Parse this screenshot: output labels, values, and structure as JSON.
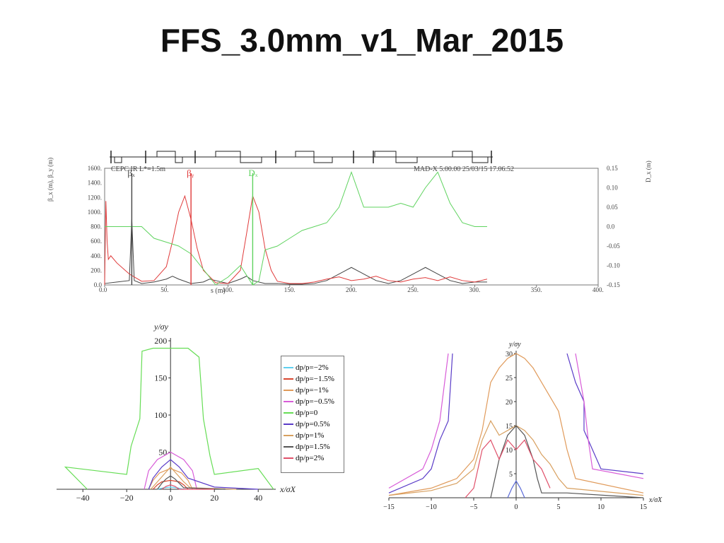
{
  "title": "FFS_3.0mm_v1_Mar_2015",
  "chart_data": [
    {
      "type": "line",
      "header_left": "CEPC IR L*=1.5m",
      "header_right": "MAD-X 5.00.00  25/03/15 17.06.52",
      "xlabel": "s (m)",
      "ylabel_left": "β_x (m), β_y (m)",
      "ylabel_right": "D_x (m)",
      "xlim": [
        0,
        400
      ],
      "ylim_left": [
        0,
        1600
      ],
      "ylim_right": [
        -0.15,
        0.15
      ],
      "x_ticks": [
        "0.0",
        "50.",
        "100.",
        "150.",
        "200.",
        "250.",
        "300.",
        "350.",
        "400."
      ],
      "y_ticks_left": [
        "0.0",
        "200.",
        "400.",
        "600.",
        "800.",
        "1000.",
        "1200.",
        "1400.",
        "1600."
      ],
      "y_ticks_right": [
        "-0.15",
        "-0.10",
        "-0.05",
        "0.0",
        "0.05",
        "0.10",
        "0.15"
      ],
      "series_labels": [
        "βₓ",
        "βᵧ",
        "Dₓ"
      ],
      "series": [
        {
          "name": "βₓ",
          "axis": "left",
          "color": "#444444",
          "width": 1,
          "x": [
            0,
            10,
            20,
            22,
            24,
            30,
            40,
            50,
            55,
            60,
            70,
            80,
            85,
            90,
            100,
            110,
            115,
            120,
            130,
            140,
            150,
            160,
            170,
            180,
            190,
            200,
            210,
            220,
            230,
            240,
            250,
            260,
            270,
            280,
            290,
            300,
            310
          ],
          "y": [
            20,
            40,
            60,
            900,
            60,
            20,
            40,
            80,
            120,
            80,
            20,
            40,
            80,
            60,
            20,
            80,
            120,
            60,
            20,
            20,
            10,
            10,
            20,
            60,
            150,
            240,
            150,
            60,
            20,
            60,
            150,
            240,
            150,
            60,
            20,
            40,
            40
          ]
        },
        {
          "name": "βᵧ",
          "axis": "left",
          "color": "#e03a3a",
          "width": 1,
          "x": [
            0,
            1,
            2,
            3,
            5,
            10,
            20,
            30,
            40,
            50,
            55,
            60,
            65,
            70,
            75,
            80,
            90,
            100,
            110,
            115,
            120,
            125,
            130,
            135,
            140,
            150,
            160,
            170,
            180,
            190,
            200,
            210,
            220,
            230,
            240,
            250,
            260,
            270,
            280,
            290,
            300,
            305,
            310
          ],
          "y": [
            0,
            1150,
            600,
            350,
            400,
            300,
            150,
            50,
            60,
            250,
            600,
            1000,
            1220,
            900,
            500,
            200,
            30,
            20,
            200,
            700,
            1220,
            1000,
            500,
            200,
            50,
            20,
            20,
            40,
            80,
            110,
            60,
            80,
            120,
            60,
            40,
            80,
            100,
            60,
            110,
            60,
            40,
            60,
            80
          ]
        },
        {
          "name": "Dₓ",
          "axis": "right",
          "color": "#5fd35f",
          "width": 1,
          "x": [
            0,
            5,
            10,
            20,
            30,
            40,
            50,
            60,
            70,
            80,
            90,
            95,
            100,
            110,
            120,
            125,
            130,
            140,
            150,
            160,
            170,
            180,
            190,
            200,
            210,
            220,
            230,
            240,
            250,
            260,
            270,
            280,
            290,
            300,
            310
          ],
          "y": [
            0.0,
            0.0,
            0.0,
            0.0,
            0.0,
            -0.03,
            -0.04,
            -0.05,
            -0.07,
            -0.11,
            -0.15,
            -0.14,
            -0.13,
            -0.1,
            -0.15,
            -0.14,
            -0.06,
            -0.05,
            -0.03,
            -0.01,
            0.0,
            0.01,
            0.05,
            0.14,
            0.05,
            0.05,
            0.05,
            0.06,
            0.05,
            0.1,
            0.14,
            0.06,
            0.01,
            0.0,
            0.0
          ]
        }
      ]
    },
    {
      "type": "line",
      "xlabel": "x/σX",
      "ylabel": "y/σy",
      "xlim": [
        -52,
        48
      ],
      "ylim": [
        0,
        200
      ],
      "x_ticks": [
        -40,
        -20,
        0,
        20,
        40
      ],
      "y_ticks": [
        50,
        100,
        150,
        200
      ],
      "legend_title_note": "",
      "series": [
        {
          "name": "dp/p=-2%",
          "color": "#5fd0f0",
          "x": [
            -6,
            -3,
            0,
            3,
            6
          ],
          "y": [
            0,
            2,
            3,
            2,
            0
          ]
        },
        {
          "name": "dp/p=-1.5%",
          "color": "#d9462f",
          "x": [
            -8,
            -6,
            -4,
            0,
            4,
            6,
            8
          ],
          "y": [
            0,
            6,
            10,
            12,
            10,
            6,
            0
          ]
        },
        {
          "name": "dp/p=-1%",
          "color": "#e09a5a",
          "x": [
            -10,
            -8,
            -5,
            0,
            5,
            8,
            10
          ],
          "y": [
            0,
            12,
            22,
            28,
            22,
            12,
            0
          ]
        },
        {
          "name": "dp/p=-0.5%",
          "color": "#d85cd8",
          "x": [
            -12,
            -10,
            -6,
            0,
            6,
            10,
            12
          ],
          "y": [
            0,
            25,
            40,
            50,
            40,
            25,
            0
          ]
        },
        {
          "name": "dp/p=0",
          "color": "#66dd55",
          "x": [
            -38,
            -48,
            -20,
            -18,
            -14,
            -13,
            -8,
            8,
            13,
            15,
            18,
            20,
            40,
            47
          ],
          "y": [
            0,
            30,
            20,
            58,
            95,
            186,
            190,
            190,
            178,
            95,
            45,
            20,
            28,
            0
          ]
        },
        {
          "name": "dp/p=0.5%",
          "color": "#5a3cc8",
          "x": [
            -10,
            -8,
            -4,
            0,
            4,
            8,
            20,
            40
          ],
          "y": [
            0,
            15,
            30,
            40,
            30,
            15,
            3,
            0
          ]
        },
        {
          "name": "dp/p=1%",
          "color": "#d8a060",
          "x": [
            -9,
            -6,
            -3,
            0,
            3,
            6,
            9,
            30
          ],
          "y": [
            0,
            10,
            20,
            30,
            20,
            10,
            2,
            0
          ]
        },
        {
          "name": "dp/p=1.5%",
          "color": "#555555",
          "x": [
            -6,
            -4,
            -2,
            0,
            2,
            4,
            6,
            25
          ],
          "y": [
            0,
            8,
            14,
            18,
            14,
            8,
            2,
            0
          ]
        },
        {
          "name": "dp/p=2%",
          "color": "#e0506a",
          "x": [
            -4,
            -2,
            0,
            2,
            4,
            20
          ],
          "y": [
            0,
            4,
            6,
            4,
            0,
            0
          ]
        }
      ]
    },
    {
      "type": "line",
      "xlabel": "x/σX",
      "ylabel": "y/σy",
      "xlim": [
        -15,
        15
      ],
      "ylim": [
        0,
        30
      ],
      "x_ticks": [
        -15,
        -10,
        -5,
        0,
        5,
        10,
        15
      ],
      "y_ticks": [
        5,
        10,
        15,
        20,
        25,
        30
      ],
      "series": [
        {
          "name": "dp/p=0.5%",
          "color": "#5a3cc8",
          "x": [
            -15,
            -11,
            -10,
            -9,
            -8,
            -7.5
          ],
          "y": [
            1,
            4,
            6,
            12,
            16,
            30
          ]
        },
        {
          "name": "dp/p=0.5%",
          "color": "#5a3cc8",
          "x": [
            6,
            7,
            8,
            8,
            9,
            10,
            15
          ],
          "y": [
            30,
            24,
            20,
            14,
            10,
            6,
            5
          ]
        },
        {
          "name": "dp/p=-0.5%",
          "color": "#d85cd8",
          "x": [
            -15,
            -11,
            -10,
            -9,
            -8
          ],
          "y": [
            2,
            6,
            10,
            16,
            30
          ]
        },
        {
          "name": "dp/p=-0.5%",
          "color": "#d85cd8",
          "x": [
            7,
            8,
            8.5,
            9,
            15
          ],
          "y": [
            30,
            20,
            12,
            6,
            4
          ]
        },
        {
          "name": "dp/p=1%",
          "color": "#e09a5a",
          "x": [
            -15,
            -10,
            -7,
            -5,
            -4,
            -3,
            -2,
            -1,
            0,
            1,
            2,
            3,
            5,
            6,
            7,
            15
          ],
          "y": [
            0.5,
            2,
            4,
            8,
            14,
            24,
            27,
            29,
            30,
            29,
            27,
            24,
            18,
            10,
            4,
            1
          ]
        },
        {
          "name": "dp/p=1.5%",
          "color": "#d8a060",
          "x": [
            -15,
            -10,
            -7,
            -5,
            -4,
            -3,
            -2,
            -1,
            0,
            1,
            2,
            3,
            4,
            5,
            6,
            15
          ],
          "y": [
            0.5,
            1.5,
            3,
            6,
            12,
            16,
            13,
            14,
            15,
            14,
            12,
            9,
            7,
            4,
            2,
            0.5
          ]
        },
        {
          "name": "dp/p=1.5%",
          "color": "#555555",
          "x": [
            -3,
            -2.5,
            -2,
            -1,
            0,
            1,
            2,
            2.5,
            3,
            6,
            15
          ],
          "y": [
            0,
            4,
            8,
            13,
            15,
            13,
            8,
            4,
            1,
            1,
            0
          ]
        },
        {
          "name": "dp/p=2%",
          "color": "#e0506a",
          "x": [
            -6,
            -5,
            -4,
            -3,
            -2,
            -1,
            0,
            1,
            2,
            3,
            4
          ],
          "y": [
            0,
            2,
            10,
            12,
            8,
            12,
            10,
            12,
            8,
            6,
            2
          ]
        },
        {
          "name": "dp/p=2% ",
          "color": "#5a6ad8",
          "x": [
            -1,
            -0.5,
            0,
            0.5,
            1
          ],
          "y": [
            0,
            2,
            3.5,
            2,
            0
          ]
        }
      ]
    }
  ],
  "legend": [
    "dp/p=−2%",
    "dp/p=−1.5%",
    "dp/p=−1%",
    "dp/p=−0.5%",
    "dp/p=0",
    "dp/p=0.5%",
    "dp/p=1%",
    "dp/p=1.5%",
    "dp/p=2%"
  ],
  "legend_colors": [
    "#5fd0f0",
    "#d9462f",
    "#e09a5a",
    "#d85cd8",
    "#66dd55",
    "#5a3cc8",
    "#d8a060",
    "#555555",
    "#e0506a"
  ]
}
